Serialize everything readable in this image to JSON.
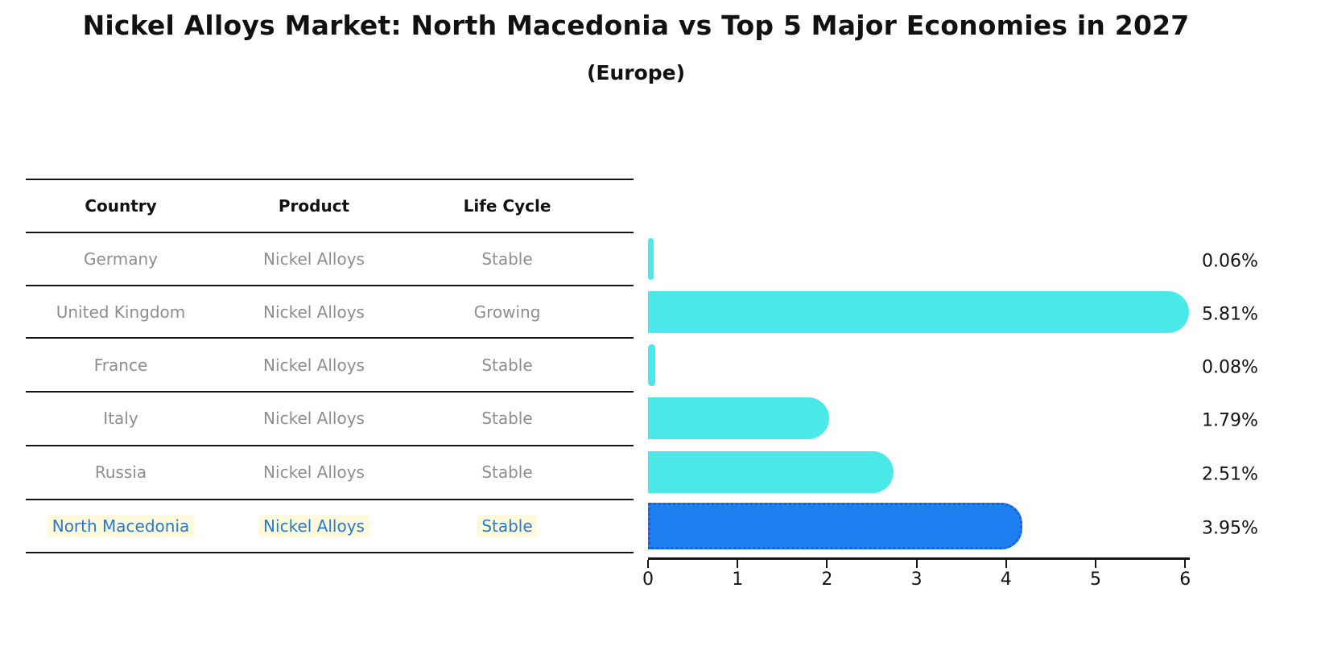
{
  "page": {
    "title": "Nickel Alloys Market: North Macedonia vs Top 5 Major Economies in 2027",
    "subtitle": "(Europe)"
  },
  "table": {
    "columns": [
      "Country",
      "Product",
      "Life Cycle"
    ],
    "rows": [
      {
        "country": "Germany",
        "product": "Nickel Alloys",
        "life_cycle": "Stable",
        "highlight": false
      },
      {
        "country": "United Kingdom",
        "product": "Nickel Alloys",
        "life_cycle": "Growing",
        "highlight": false
      },
      {
        "country": "France",
        "product": "Nickel Alloys",
        "life_cycle": "Stable",
        "highlight": false
      },
      {
        "country": "Italy",
        "product": "Nickel Alloys",
        "life_cycle": "Stable",
        "highlight": false
      },
      {
        "country": "Russia",
        "product": "Nickel Alloys",
        "life_cycle": "Stable",
        "highlight": false
      },
      {
        "country": "North Macedonia",
        "product": "Nickel Alloys",
        "life_cycle": "Stable",
        "highlight": true
      }
    ]
  },
  "chart_data": {
    "type": "bar",
    "orientation": "horizontal",
    "title": "Nickel Alloys Market: North Macedonia vs Top 5 Major Economies in 2027",
    "subtitle": "(Europe)",
    "categories": [
      "Germany",
      "United Kingdom",
      "France",
      "Italy",
      "Russia",
      "North Macedonia"
    ],
    "values": [
      0.06,
      5.81,
      0.08,
      1.79,
      2.51,
      3.95
    ],
    "value_labels": [
      "0.06%",
      "5.81%",
      "0.08%",
      "1.79%",
      "2.51%",
      "3.95%"
    ],
    "xlabel": "",
    "ylabel": "",
    "xlim": [
      0,
      6
    ],
    "xticks": [
      0,
      1,
      2,
      3,
      4,
      5,
      6
    ],
    "grid": false,
    "legend": "none",
    "highlight_index": 5
  },
  "colors": {
    "bar": "#4AE8E6",
    "highlight_bar": "#1E80F0",
    "highlight_bar_border": "#1A5FD8",
    "highlight_text": "#2979C9",
    "highlight_text_bg": "rgba(255,246,190,0.55)",
    "row_text": "#8E8E8E",
    "header_text": "#111111",
    "axis": "#151515"
  }
}
